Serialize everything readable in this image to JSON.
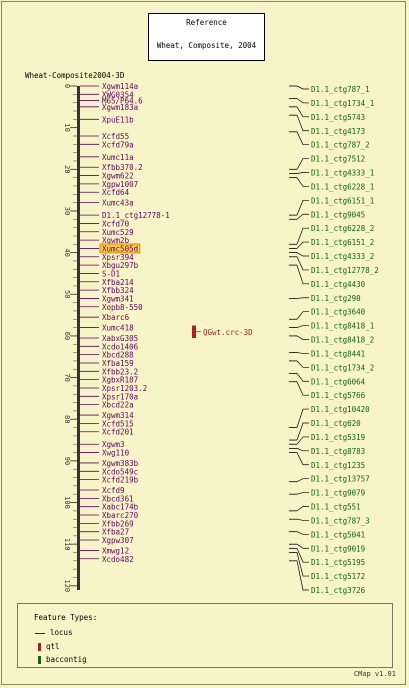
{
  "reference": {
    "heading": "Reference",
    "name": "Wheat, Composite, 2004"
  },
  "map_title": "Wheat-Composite2004-3D",
  "axis": {
    "ticks": [
      "0",
      "10",
      "20",
      "30",
      "40",
      "50",
      "60",
      "70",
      "80",
      "90",
      "100",
      "110",
      "120"
    ],
    "min": 0,
    "max": 121
  },
  "markers": [
    {
      "name": "Xgwm114a",
      "pos": 0.0
    },
    {
      "name": "XWG0354",
      "pos": 2.0
    },
    {
      "name": "M65/P64.6",
      "pos": 3.5
    },
    {
      "name": "Xgwm183a",
      "pos": 5.0
    },
    {
      "name": "XpuE11b",
      "pos": 8.0
    },
    {
      "name": "Xcfd55",
      "pos": 12.0
    },
    {
      "name": "Xcfd79a",
      "pos": 14.0
    },
    {
      "name": "Xumc11a",
      "pos": 17.0
    },
    {
      "name": "Xfbb370.2",
      "pos": 19.5
    },
    {
      "name": "Xgwm622",
      "pos": 21.5
    },
    {
      "name": "Xgpw1007",
      "pos": 23.5
    },
    {
      "name": "Xcfd64",
      "pos": 25.5
    },
    {
      "name": "Xumc43a",
      "pos": 28.0
    },
    {
      "name": "D1.1_ctg12778-1",
      "pos": 31.0
    },
    {
      "name": "Xcfd70",
      "pos": 33.0
    },
    {
      "name": "Xumc529",
      "pos": 35.0
    },
    {
      "name": "Xgwm2b",
      "pos": 37.0
    },
    {
      "name": "Xumc505d",
      "pos": 39.0,
      "highlight": true
    },
    {
      "name": "Xpsr394",
      "pos": 41.0
    },
    {
      "name": "Xbgu297b",
      "pos": 43.0
    },
    {
      "name": "S-D1",
      "pos": 45.0
    },
    {
      "name": "Xfba214",
      "pos": 47.0
    },
    {
      "name": "Xfbb324",
      "pos": 49.0
    },
    {
      "name": "Xgwm341",
      "pos": 51.0
    },
    {
      "name": "Xopb8-550",
      "pos": 53.0
    },
    {
      "name": "Xbarc6",
      "pos": 55.5
    },
    {
      "name": "Xumc418",
      "pos": 58.0
    },
    {
      "name": "XabxG305",
      "pos": 60.5
    },
    {
      "name": "Xcdo1406",
      "pos": 62.5
    },
    {
      "name": "Xbcd288",
      "pos": 64.5
    },
    {
      "name": "Xfba159",
      "pos": 66.5
    },
    {
      "name": "Xfbb23.2",
      "pos": 68.5
    },
    {
      "name": "XgbxR187",
      "pos": 70.5
    },
    {
      "name": "Xpsr1203.2",
      "pos": 72.5
    },
    {
      "name": "Xpsr170a",
      "pos": 74.5
    },
    {
      "name": "Xbcd22a",
      "pos": 76.5
    },
    {
      "name": "Xgwm314",
      "pos": 79.0
    },
    {
      "name": "Xcfd515",
      "pos": 81.0
    },
    {
      "name": "Xcfd201",
      "pos": 83.0
    },
    {
      "name": "Xgwm3",
      "pos": 86.0
    },
    {
      "name": "Xwg110",
      "pos": 88.0
    },
    {
      "name": "Xgwm383b",
      "pos": 90.5
    },
    {
      "name": "Xcdo549c",
      "pos": 92.5
    },
    {
      "name": "Xcfd219b",
      "pos": 94.5
    },
    {
      "name": "Xcfd9",
      "pos": 97.0
    },
    {
      "name": "Xbcd361",
      "pos": 99.0
    },
    {
      "name": "Xabc174b",
      "pos": 101.0
    },
    {
      "name": "Xbarc270",
      "pos": 103.0
    },
    {
      "name": "Xfbb269",
      "pos": 105.0
    },
    {
      "name": "Xfba27",
      "pos": 107.0
    },
    {
      "name": "Xgpw307",
      "pos": 109.0
    },
    {
      "name": "Xmwg12",
      "pos": 111.5
    },
    {
      "name": "Xcdo482",
      "pos": 113.5
    }
  ],
  "qtl": {
    "name": "QGwt.crc-3D",
    "start": 57.5,
    "end": 60.5
  },
  "contigs": [
    {
      "name": "D1.1_ctg787_1",
      "pos": 0.0
    },
    {
      "name": "D1.1_ctg1734_1",
      "pos": 3.0
    },
    {
      "name": "D1.1_ctg5743",
      "pos": 5.0
    },
    {
      "name": "D1.1_ctg4173",
      "pos": 7.0
    },
    {
      "name": "D1.1_ctg787_2",
      "pos": 11.0
    },
    {
      "name": "D1.1_ctg7512",
      "pos": 20.0
    },
    {
      "name": "D1.1_ctg4333_1",
      "pos": 21.0
    },
    {
      "name": "D1.1_ctg6228_1",
      "pos": 22.0
    },
    {
      "name": "D1.1_ctg6151_1",
      "pos": 31.0
    },
    {
      "name": "D1.1_ctg9045",
      "pos": 32.0
    },
    {
      "name": "D1.1_ctg6228_2",
      "pos": 38.0
    },
    {
      "name": "D1.1_ctg6151_2",
      "pos": 39.0
    },
    {
      "name": "D1.1_ctg4333_2",
      "pos": 40.0
    },
    {
      "name": "D1.1_ctg12778_2",
      "pos": 41.0
    },
    {
      "name": "D1.1_ctg4430",
      "pos": 43.0
    },
    {
      "name": "D1.1_ctg290",
      "pos": 51.0
    },
    {
      "name": "D1.1_ctg3640",
      "pos": 56.0
    },
    {
      "name": "D1.1_ctg8418_1",
      "pos": 58.0
    },
    {
      "name": "D1.1_ctg8418_2",
      "pos": 60.0
    },
    {
      "name": "D1.1_ctg8441",
      "pos": 64.0
    },
    {
      "name": "D1.1_ctg1734_2",
      "pos": 66.0
    },
    {
      "name": "D1.1_ctg6064",
      "pos": 69.0
    },
    {
      "name": "D1.1_ctg5766",
      "pos": 71.0
    },
    {
      "name": "D1.1_ctg10420",
      "pos": 82.0
    },
    {
      "name": "D1.1_ctg620",
      "pos": 85.0
    },
    {
      "name": "D1.1_ctg5319",
      "pos": 86.0
    },
    {
      "name": "D1.1_ctg8783",
      "pos": 87.0
    },
    {
      "name": "D1.1_ctg1235",
      "pos": 88.0
    },
    {
      "name": "D1.1_ctg13757",
      "pos": 95.0
    },
    {
      "name": "D1.1_ctg9079",
      "pos": 98.0
    },
    {
      "name": "D1.1_ctg551",
      "pos": 102.0
    },
    {
      "name": "D1.1_ctg787_3",
      "pos": 104.0
    },
    {
      "name": "D1.1_ctg5041",
      "pos": 107.0
    },
    {
      "name": "D1.1_ctg9019",
      "pos": 110.0
    },
    {
      "name": "D1.1_ctg5195",
      "pos": 111.0
    },
    {
      "name": "D1.1_ctg5172",
      "pos": 112.0
    },
    {
      "name": "D1.1_ctg3726",
      "pos": 114.0
    }
  ],
  "legend": {
    "title": "Feature Types:",
    "items": [
      {
        "label": "locus",
        "color": "#660066"
      },
      {
        "label": "qtl",
        "color": "#aa2222"
      },
      {
        "label": "baccontig",
        "color": "#116611"
      }
    ]
  },
  "version": "CMap v1.01",
  "colors": {
    "background": "#f7f4c8",
    "locus": "#660066",
    "qtl": "#aa2222",
    "contig": "#116611",
    "highlight": "#ffcc44"
  }
}
